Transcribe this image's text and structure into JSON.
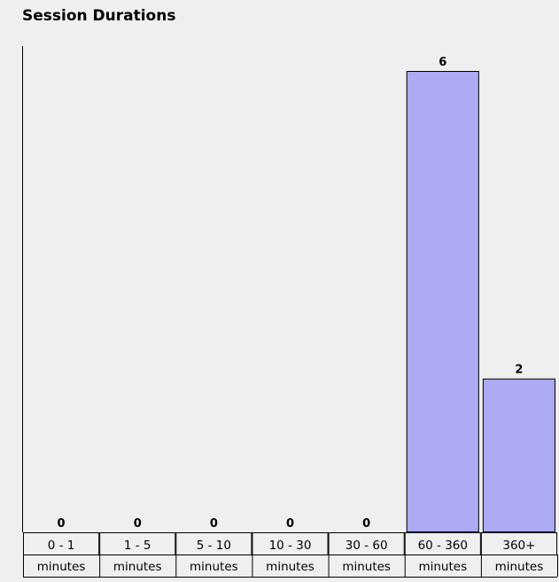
{
  "chart_data": {
    "type": "bar",
    "title": "Session Durations",
    "categories": [
      [
        "0 - 1",
        "minutes"
      ],
      [
        "1 - 5",
        "minutes"
      ],
      [
        "5 - 10",
        "minutes"
      ],
      [
        "10 - 30",
        "minutes"
      ],
      [
        "30 - 60",
        "minutes"
      ],
      [
        "60 - 360",
        "minutes"
      ],
      [
        "360+",
        "minutes"
      ]
    ],
    "values": [
      0,
      0,
      0,
      0,
      0,
      6,
      2
    ],
    "ylim": [
      0,
      6
    ],
    "data_labels": true,
    "grid": false,
    "colors": {
      "bar_fill": "#abaaf2",
      "bar_stroke": "#000000",
      "background": "#efefef",
      "axis": "#000000"
    }
  }
}
